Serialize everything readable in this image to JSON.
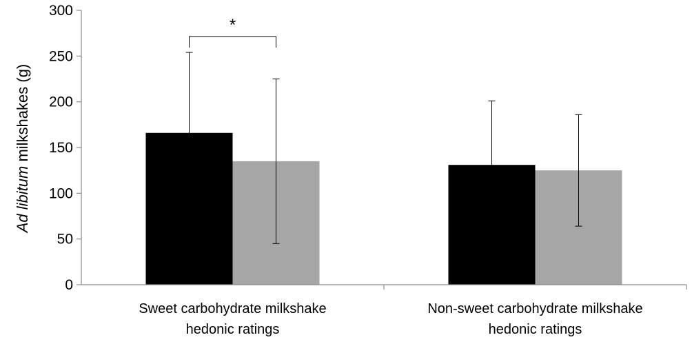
{
  "chart_data": {
    "type": "bar",
    "title": "",
    "ylabel_italic": "Ad libitum",
    "ylabel_rest": " milkshakes (g)",
    "ylim": [
      0,
      300
    ],
    "yticks": [
      "0",
      "50",
      "100",
      "150",
      "200",
      "250",
      "300"
    ],
    "categories": [
      {
        "line1": "Sweet carbohydrate milkshake",
        "line2": "hedonic ratings"
      },
      {
        "line1": "Non-sweet carbohydrate milkshake",
        "line2": "hedonic ratings"
      }
    ],
    "series": [
      {
        "color": "#000000",
        "values": [
          166,
          131
        ],
        "error": [
          88,
          70
        ]
      },
      {
        "color": "#a6a6a6",
        "values": [
          135,
          125
        ],
        "error": [
          90,
          61
        ]
      }
    ],
    "annotations": [
      {
        "text": "*",
        "category": 0
      }
    ],
    "grid": false
  }
}
